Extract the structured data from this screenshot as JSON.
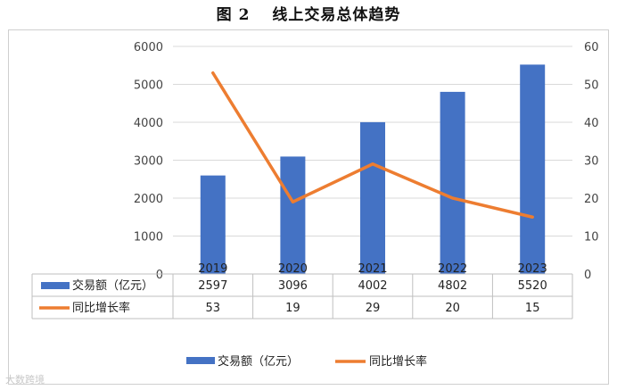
{
  "title": "图 2　 线上交易总体趋势",
  "watermark": "大数跨境",
  "colors": {
    "bar": "#4472C4",
    "line": "#ED7D31",
    "grid": "#d9d9d9",
    "axis": "#bfbfbf"
  },
  "chart_data": {
    "type": "bar",
    "categories": [
      "2019",
      "2020",
      "2021",
      "2022",
      "2023"
    ],
    "series": [
      {
        "name": "交易额（亿元）",
        "type": "bar",
        "axis": "left",
        "values": [
          2597,
          3096,
          4002,
          4802,
          5520
        ]
      },
      {
        "name": "同比增长率",
        "type": "line",
        "axis": "right",
        "values": [
          53,
          19,
          29,
          20,
          15
        ]
      }
    ],
    "ylim_left": [
      0,
      6000
    ],
    "yticks_left": [
      "0",
      "1000",
      "2000",
      "3000",
      "4000",
      "5000",
      "6000"
    ],
    "ylim_right": [
      0,
      60
    ],
    "yticks_right": [
      "0",
      "10",
      "20",
      "30",
      "40",
      "50",
      "60"
    ],
    "grid": true,
    "data_table": true,
    "legend_position": "bottom"
  }
}
